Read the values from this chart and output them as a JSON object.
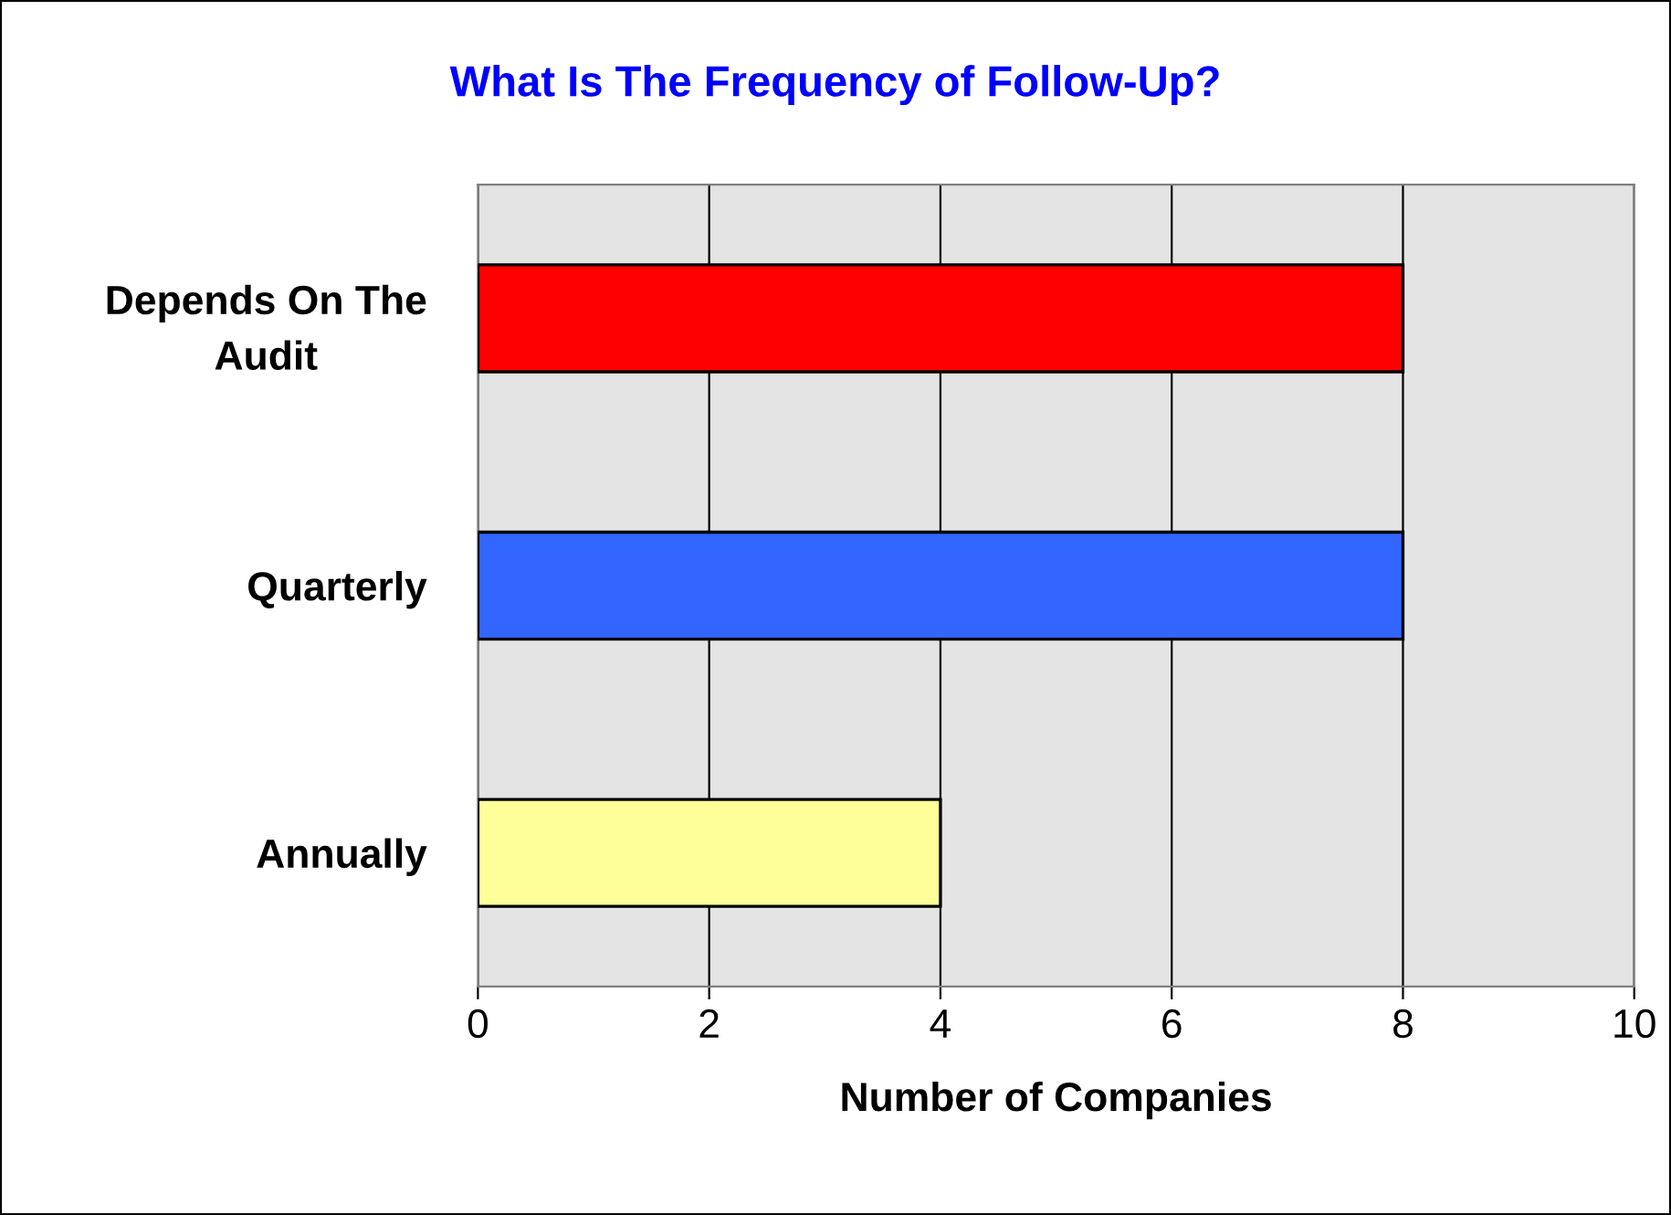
{
  "chart_data": {
    "type": "bar",
    "orientation": "horizontal",
    "title": "What Is The Frequency of Follow-Up?",
    "xlabel": "Number of Companies",
    "categories": [
      "Depends On The Audit",
      "Quarterly",
      "Annually"
    ],
    "values": [
      8,
      8,
      4
    ],
    "colors": [
      "#ff0000",
      "#3366ff",
      "#ffff99"
    ],
    "xlim": [
      0,
      10
    ],
    "xticks": [
      0,
      2,
      4,
      6,
      8,
      10
    ],
    "grid": "x"
  }
}
